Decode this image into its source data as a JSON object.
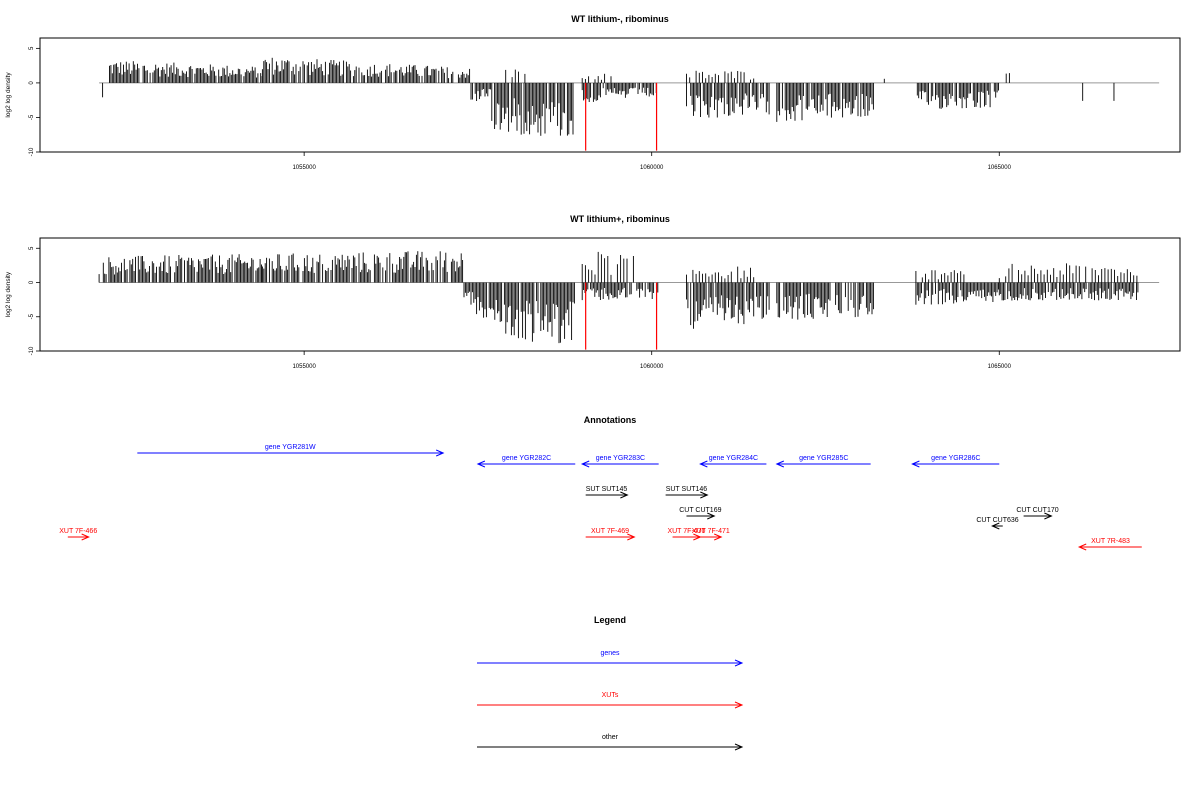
{
  "chart_data": [
    {
      "type": "bar",
      "title": "WT lithium-, ribominus",
      "ylabel": "log2 log density",
      "xlim": [
        1051200,
        1067600
      ],
      "ylim": [
        -10,
        6.5
      ],
      "yticks": [
        5,
        0,
        -5,
        -10
      ],
      "ytick_labels": [
        "5",
        "0",
        "-5",
        "-10"
      ],
      "xticks": [
        1055000,
        1060000,
        1065000
      ],
      "xtick_labels": [
        "1055000",
        "1060000",
        "1065000"
      ],
      "baseline_color": "#999999",
      "bar_color": "#000000",
      "marker_color": "#ff0000",
      "markers": [
        {
          "x": 1059050,
          "value": -9.8
        },
        {
          "x": 1060070,
          "value": -9.8
        }
      ],
      "segments": [
        {
          "x": [
            1052100,
            1052100
          ],
          "value": [
            -2.3,
            -2.3
          ]
        },
        {
          "x": [
            1052200,
            1054400
          ],
          "value": [
            2.8,
            2.0
          ]
        },
        {
          "x": [
            1054400,
            1057400
          ],
          "value": [
            3.3,
            1.8
          ]
        },
        {
          "x": [
            1057400,
            1057700
          ],
          "value": [
            -2.8,
            -1.5
          ]
        },
        {
          "x": [
            1057700,
            1058900
          ],
          "value": [
            -6.0,
            -6.8
          ]
        },
        {
          "x": [
            1059000,
            1059500
          ],
          "value": [
            -2.5,
            -2.0
          ]
        },
        {
          "x": [
            1059500,
            1060100
          ],
          "value": [
            -2.0,
            -1.8
          ]
        },
        {
          "x": [
            1060500,
            1061700
          ],
          "value": [
            -4.5,
            -3.8
          ]
        },
        {
          "x": [
            1061800,
            1063200
          ],
          "value": [
            -4.8,
            -4.2
          ]
        },
        {
          "x": [
            1063800,
            1065000
          ],
          "value": [
            -3.3,
            -3.0
          ]
        }
      ],
      "pos_islands": [
        {
          "x": [
            1057900,
            1058200
          ],
          "value": 1.3
        },
        {
          "x": [
            1059000,
            1059500
          ],
          "value": 1.0
        },
        {
          "x": [
            1060500,
            1061500
          ],
          "value": 1.2
        },
        {
          "x": [
            1063300,
            1063350
          ],
          "value": 1.5
        },
        {
          "x": [
            1065100,
            1065150
          ],
          "value": 1.0
        }
      ],
      "spikes": [
        {
          "x": 1066200,
          "value": -2.6
        },
        {
          "x": 1066650,
          "value": -2.6
        }
      ]
    },
    {
      "type": "bar",
      "title": "WT lithium+, ribominus",
      "ylabel": "log2 log density",
      "xlim": [
        1051200,
        1067600
      ],
      "ylim": [
        -10,
        6.5
      ],
      "yticks": [
        5,
        0,
        -5,
        -10
      ],
      "ytick_labels": [
        "5",
        "0",
        "-5",
        "-10"
      ],
      "xticks": [
        1055000,
        1060000,
        1065000
      ],
      "xtick_labels": [
        "1055000",
        "1060000",
        "1065000"
      ],
      "baseline_color": "#999999",
      "bar_color": "#000000",
      "marker_color": "#ff0000",
      "markers": [
        {
          "x": 1059050,
          "value": -9.8
        },
        {
          "x": 1060070,
          "value": -9.8
        }
      ],
      "segments": [
        {
          "x": [
            1052050,
            1054400
          ],
          "value": [
            3.2,
            3.5
          ]
        },
        {
          "x": [
            1054400,
            1057300
          ],
          "value": [
            3.5,
            4.0
          ]
        },
        {
          "x": [
            1057300,
            1057800
          ],
          "value": [
            -3.5,
            -5.0
          ]
        },
        {
          "x": [
            1057800,
            1058900
          ],
          "value": [
            -7.2,
            -7.5
          ]
        },
        {
          "x": [
            1059000,
            1060100
          ],
          "value": [
            -2.4,
            -2.0
          ]
        },
        {
          "x": [
            1060500,
            1061700
          ],
          "value": [
            -5.8,
            -4.8
          ]
        },
        {
          "x": [
            1061800,
            1063200
          ],
          "value": [
            -4.8,
            -4.2
          ]
        },
        {
          "x": [
            1063800,
            1065000
          ],
          "value": [
            -2.8,
            -2.5
          ]
        },
        {
          "x": [
            1065000,
            1067000
          ],
          "value": [
            -2.2,
            -2.2
          ]
        }
      ],
      "pos_islands": [
        {
          "x": [
            1059000,
            1059800
          ],
          "value": 3.0
        },
        {
          "x": [
            1060500,
            1061500
          ],
          "value": 1.6
        },
        {
          "x": [
            1063800,
            1064500
          ],
          "value": 1.2
        },
        {
          "x": [
            1065000,
            1067000
          ],
          "value": 1.8
        }
      ],
      "spikes": []
    }
  ],
  "annotations": {
    "title": "Annotations",
    "features": [
      {
        "label": "gene YGR281W",
        "start": 1052600,
        "end": 1057000,
        "strand": "+",
        "color": "#0000ff",
        "row": 0
      },
      {
        "label": "gene YGR282C",
        "start": 1057500,
        "end": 1058900,
        "strand": "-",
        "color": "#0000ff",
        "row": 1
      },
      {
        "label": "gene YGR283C",
        "start": 1059000,
        "end": 1060100,
        "strand": "-",
        "color": "#0000ff",
        "row": 1
      },
      {
        "label": "gene YGR284C",
        "start": 1060700,
        "end": 1061650,
        "strand": "-",
        "color": "#0000ff",
        "row": 1
      },
      {
        "label": "gene YGR285C",
        "start": 1061800,
        "end": 1063150,
        "strand": "-",
        "color": "#0000ff",
        "row": 1
      },
      {
        "label": "gene YGR286C",
        "start": 1063750,
        "end": 1065000,
        "strand": "-",
        "color": "#0000ff",
        "row": 1
      },
      {
        "label": "SUT SUT145",
        "start": 1059050,
        "end": 1059650,
        "strand": "+",
        "color": "#000000",
        "row": 2
      },
      {
        "label": "SUT SUT146",
        "start": 1060200,
        "end": 1060800,
        "strand": "+",
        "color": "#000000",
        "row": 2
      },
      {
        "label": "CUT CUT169",
        "start": 1060500,
        "end": 1060900,
        "strand": "+",
        "color": "#000000",
        "row": 3
      },
      {
        "label": "CUT CUT170",
        "start": 1065350,
        "end": 1065750,
        "strand": "+",
        "color": "#000000",
        "row": 3
      },
      {
        "label": "CUT CUT636",
        "start": 1064900,
        "end": 1065050,
        "strand": "-",
        "color": "#000000",
        "row": 4
      },
      {
        "label": "XUT 7F-466",
        "start": 1051600,
        "end": 1051900,
        "strand": "+",
        "color": "#ff0000",
        "row": 5
      },
      {
        "label": "XUT 7F-469",
        "start": 1059050,
        "end": 1059750,
        "strand": "+",
        "color": "#ff0000",
        "row": 5
      },
      {
        "label": "XUT 7F-470",
        "start": 1060300,
        "end": 1060700,
        "strand": "+",
        "color": "#ff0000",
        "row": 5
      },
      {
        "label": "XUT 7F-471",
        "start": 1060700,
        "end": 1061000,
        "strand": "+",
        "color": "#ff0000",
        "row": 5
      },
      {
        "label": "XUT 7R-483",
        "start": 1066150,
        "end": 1067050,
        "strand": "-",
        "color": "#ff0000",
        "row": 6
      }
    ]
  },
  "legend": {
    "title": "Legend",
    "items": [
      {
        "label": "genes",
        "color": "#0000ff"
      },
      {
        "label": "XUTs",
        "color": "#ff0000"
      },
      {
        "label": "other",
        "color": "#000000"
      }
    ]
  }
}
